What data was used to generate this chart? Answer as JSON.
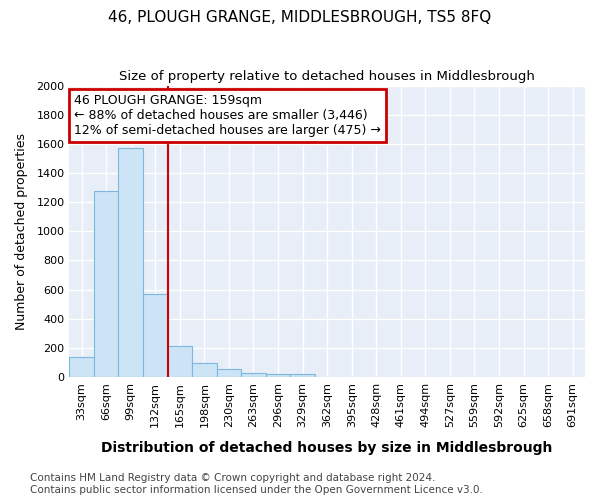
{
  "title": "46, PLOUGH GRANGE, MIDDLESBROUGH, TS5 8FQ",
  "subtitle": "Size of property relative to detached houses in Middlesbrough",
  "xlabel": "Distribution of detached houses by size in Middlesbrough",
  "ylabel": "Number of detached properties",
  "footnote": "Contains HM Land Registry data © Crown copyright and database right 2024.\nContains public sector information licensed under the Open Government Licence v3.0.",
  "categories": [
    "33sqm",
    "66sqm",
    "99sqm",
    "132sqm",
    "165sqm",
    "198sqm",
    "230sqm",
    "263sqm",
    "296sqm",
    "329sqm",
    "362sqm",
    "395sqm",
    "428sqm",
    "461sqm",
    "494sqm",
    "527sqm",
    "559sqm",
    "592sqm",
    "625sqm",
    "658sqm",
    "691sqm"
  ],
  "values": [
    140,
    1280,
    1570,
    570,
    215,
    100,
    55,
    25,
    20,
    20,
    0,
    0,
    0,
    0,
    0,
    0,
    0,
    0,
    0,
    0,
    0
  ],
  "bar_color": "#cce4f5",
  "bar_edge_color": "#7ab8e0",
  "redline_index": 4,
  "property_size": 159,
  "annotation_title": "46 PLOUGH GRANGE: 159sqm",
  "annotation_line1": "← 88% of detached houses are smaller (3,446)",
  "annotation_line2": "12% of semi-detached houses are larger (475) →",
  "ylim": [
    0,
    2000
  ],
  "yticks": [
    0,
    200,
    400,
    600,
    800,
    1000,
    1200,
    1400,
    1600,
    1800,
    2000
  ],
  "background_color": "#e8eef7",
  "grid_color": "#ffffff",
  "annotation_box_color": "#ffffff",
  "annotation_border_color": "#cc0000",
  "title_fontsize": 11,
  "subtitle_fontsize": 9.5,
  "xlabel_fontsize": 10,
  "ylabel_fontsize": 9,
  "tick_fontsize": 8,
  "annotation_fontsize": 9,
  "footnote_fontsize": 7.5
}
